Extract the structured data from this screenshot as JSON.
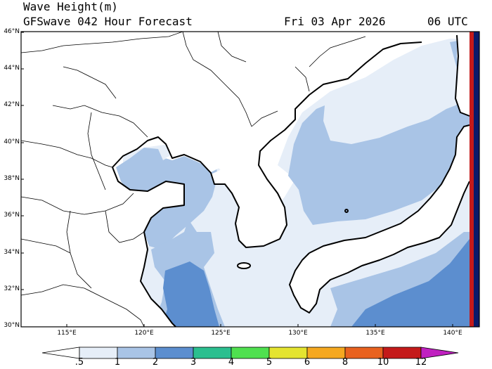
{
  "header": {
    "title": "Wave Height(m)",
    "subtitle": "GFSwave 042 Hour Forecast",
    "valid_date": "Fri 03 Apr 2026",
    "valid_time": "06 UTC"
  },
  "axes": {
    "lat_labels": [
      "46°N",
      "44°N",
      "42°N",
      "40°N",
      "38°N",
      "36°N",
      "34°N",
      "32°N",
      "30°N"
    ],
    "lon_labels": [
      "115°E",
      "120°E",
      "125°E",
      "130°E",
      "135°E",
      "140°E"
    ]
  },
  "colorbar": {
    "labels": [
      ".5",
      "1",
      "2",
      "3",
      "4",
      "5",
      "6",
      "8",
      "10",
      "12"
    ],
    "colors": [
      "#e6eef8",
      "#a9c4e6",
      "#5c8ecf",
      "#2bbf8f",
      "#4fe04f",
      "#e4e430",
      "#f5a820",
      "#e8621f",
      "#c41a1a",
      "#c020c0"
    ]
  },
  "map_colors": {
    "land": "#ffffff",
    "sea_lt05": "#ffffff",
    "sea_05_1": "#e6eef8",
    "sea_1_2": "#a9c4e6",
    "sea_2_3": "#5c8ecf",
    "coastline": "#000000",
    "border": "#000000"
  }
}
